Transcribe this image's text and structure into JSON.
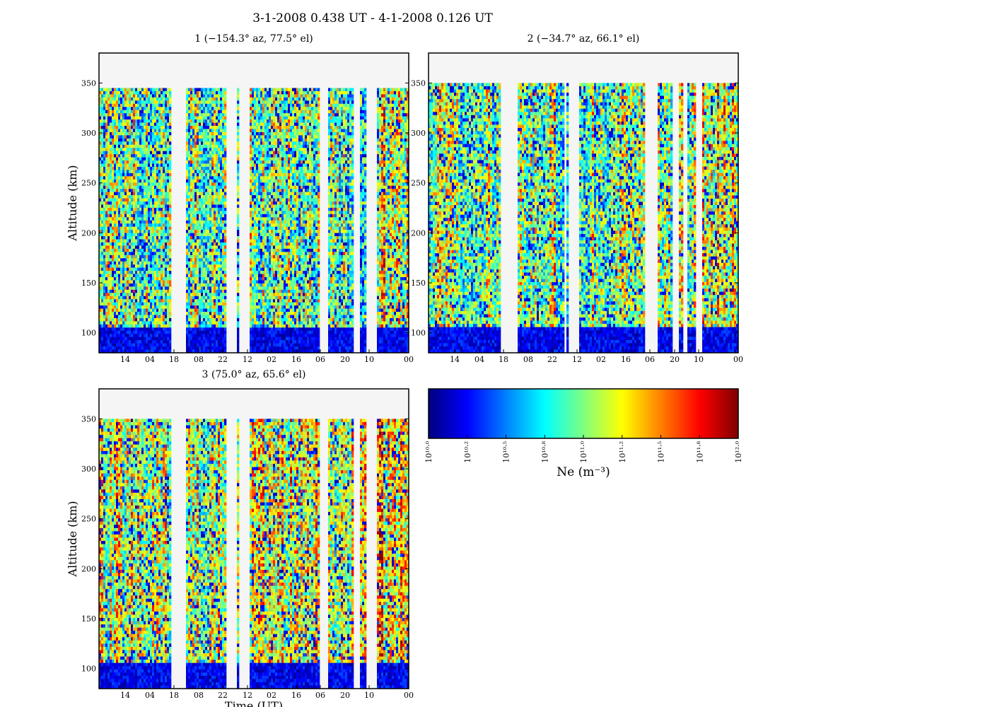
{
  "figure": {
    "title": "3-1-2008 0.438 UT - 4-1-2008 0.126 UT"
  },
  "colors": {
    "missing_data": "#f5f5f5",
    "colormap": "jet"
  },
  "chart_data": [
    {
      "type": "heatmap",
      "title": "1 (−154.3° az, 77.5° el)",
      "xlabel": "",
      "ylabel": "Altitude (km)",
      "ylim": [
        80,
        380
      ],
      "data_top_km": 345,
      "y_ticks": [
        100,
        150,
        200,
        250,
        300,
        350
      ],
      "x_tick_labels": [
        "14",
        "04",
        "18",
        "08",
        "22",
        "12",
        "02",
        "16",
        "06",
        "20",
        "10",
        "00"
      ],
      "colorbar_log_range": [
        10.0,
        12.0
      ],
      "data_gaps_fraction_of_time": [
        [
          0.235,
          0.28
        ],
        [
          0.41,
          0.445
        ],
        [
          0.453,
          0.485
        ],
        [
          0.715,
          0.74
        ],
        [
          0.82,
          0.84
        ],
        [
          0.86,
          0.895
        ]
      ],
      "low_altitude_dense_layer_km": [
        80,
        105
      ],
      "typical_log_ne": 11.0
    },
    {
      "type": "heatmap",
      "title": "2 (−34.7° az, 66.1° el)",
      "xlabel": "",
      "ylabel": "",
      "ylim": [
        80,
        380
      ],
      "data_top_km": 350,
      "y_ticks": [
        100,
        150,
        200,
        250,
        300,
        350
      ],
      "x_tick_labels": [
        "14",
        "04",
        "18",
        "08",
        "22",
        "12",
        "02",
        "16",
        "06",
        "20",
        "10",
        "00"
      ],
      "colorbar_log_range": [
        10.0,
        12.0
      ],
      "data_gaps_fraction_of_time": [
        [
          0.23,
          0.29
        ],
        [
          0.435,
          0.445
        ],
        [
          0.45,
          0.485
        ],
        [
          0.7,
          0.74
        ],
        [
          0.79,
          0.805
        ],
        [
          0.825,
          0.835
        ],
        [
          0.86,
          0.885
        ]
      ],
      "low_altitude_dense_layer_km": [
        80,
        105
      ],
      "typical_log_ne": 11.05
    },
    {
      "type": "heatmap",
      "title": "3 (75.0° az, 65.6° el)",
      "xlabel": "Time (UT)",
      "ylabel": "Altitude (km)",
      "ylim": [
        80,
        380
      ],
      "data_top_km": 350,
      "y_ticks": [
        100,
        150,
        200,
        250,
        300,
        350
      ],
      "x_tick_labels": [
        "14",
        "04",
        "18",
        "08",
        "22",
        "12",
        "02",
        "16",
        "06",
        "20",
        "10",
        "00"
      ],
      "colorbar_log_range": [
        10.0,
        12.0
      ],
      "data_gaps_fraction_of_time": [
        [
          0.235,
          0.28
        ],
        [
          0.41,
          0.445
        ],
        [
          0.453,
          0.485
        ],
        [
          0.715,
          0.74
        ],
        [
          0.82,
          0.84
        ],
        [
          0.86,
          0.895
        ]
      ],
      "low_altitude_dense_layer_km": [
        80,
        105
      ],
      "typical_log_ne": 11.15
    }
  ],
  "colorbar": {
    "label": "Ne (m⁻³)",
    "tick_labels": [
      "10¹⁰·⁰",
      "10¹⁰·²",
      "10¹⁰·⁵",
      "10¹⁰·⁸",
      "10¹¹·⁰",
      "10¹¹·²",
      "10¹¹·⁵",
      "10¹¹·⁸",
      "10¹²·⁰"
    ],
    "range_log": [
      10.0,
      12.0
    ]
  }
}
